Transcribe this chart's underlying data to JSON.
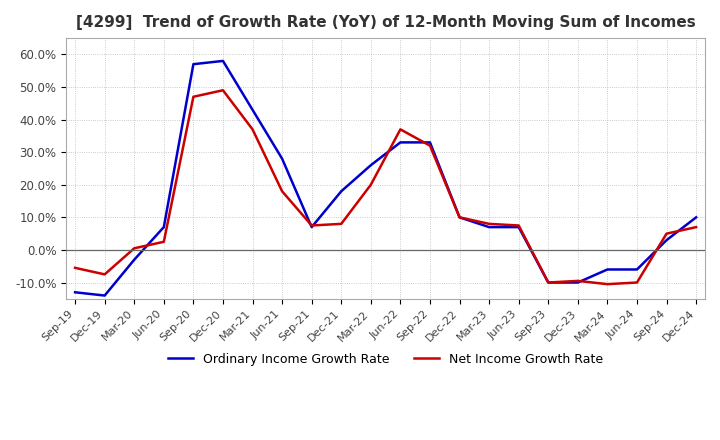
{
  "title": "[4299]  Trend of Growth Rate (YoY) of 12-Month Moving Sum of Incomes",
  "title_fontsize": 11,
  "ylim": [
    -15,
    65
  ],
  "yticks": [
    -10,
    0,
    10,
    20,
    30,
    40,
    50,
    60
  ],
  "ytick_labels": [
    "-10.0%",
    "0.0%",
    "10.0%",
    "20.0%",
    "30.0%",
    "40.0%",
    "50.0%",
    "60.0%"
  ],
  "background_color": "#ffffff",
  "grid_color": "#bbbbbb",
  "ordinary_color": "#0000cc",
  "net_color": "#cc0000",
  "legend_labels": [
    "Ordinary Income Growth Rate",
    "Net Income Growth Rate"
  ],
  "x_labels": [
    "Sep-19",
    "Dec-19",
    "Mar-20",
    "Jun-20",
    "Sep-20",
    "Dec-20",
    "Mar-21",
    "Jun-21",
    "Sep-21",
    "Dec-21",
    "Mar-22",
    "Jun-22",
    "Sep-22",
    "Dec-22",
    "Mar-23",
    "Jun-23",
    "Sep-23",
    "Dec-23",
    "Mar-24",
    "Jun-24",
    "Sep-24",
    "Dec-24"
  ],
  "ordinary_income": [
    -13.0,
    -14.0,
    -3.0,
    7.0,
    57.0,
    58.0,
    43.0,
    28.0,
    7.0,
    18.0,
    26.0,
    33.0,
    33.0,
    10.0,
    7.0,
    7.0,
    -10.0,
    -10.0,
    -6.0,
    -6.0,
    3.0,
    10.0
  ],
  "net_income": [
    -5.5,
    -7.5,
    0.5,
    2.5,
    47.0,
    49.0,
    37.0,
    18.0,
    7.5,
    8.0,
    20.0,
    37.0,
    32.0,
    10.0,
    8.0,
    7.5,
    -10.0,
    -9.5,
    -10.5,
    -10.0,
    5.0,
    7.0
  ]
}
